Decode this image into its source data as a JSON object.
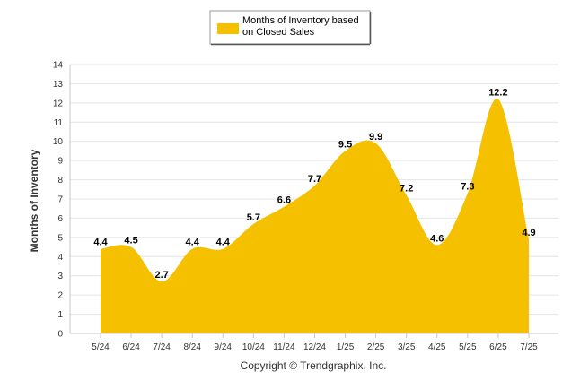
{
  "chart_data": {
    "type": "area",
    "categories": [
      "5/24",
      "6/24",
      "7/24",
      "8/24",
      "9/24",
      "10/24",
      "11/24",
      "12/24",
      "1/25",
      "2/25",
      "3/25",
      "4/25",
      "5/25",
      "6/25",
      "7/25"
    ],
    "series": [
      {
        "name": "Months of Inventory based on Closed Sales",
        "values": [
          4.4,
          4.5,
          2.7,
          4.4,
          4.4,
          5.7,
          6.6,
          7.7,
          9.5,
          9.9,
          7.2,
          4.6,
          7.3,
          12.2,
          4.9
        ],
        "labels": [
          "4.4",
          "4.5",
          "2.7",
          "4.4",
          "4.4",
          "5.7",
          "6.6",
          "7.7",
          "9.5",
          "9.9",
          "7.2",
          "4.6",
          "7.3",
          "12.2",
          "4.9"
        ],
        "color": "#F5C000"
      }
    ],
    "legend_lines": [
      "Months of Inventory based",
      "on Closed Sales"
    ],
    "legend_position": "top-center",
    "ylabel": "Months of Inventory",
    "ylim": [
      0,
      14
    ],
    "yticks": [
      "0",
      "1",
      "2",
      "3",
      "4",
      "5",
      "6",
      "7",
      "8",
      "9",
      "10",
      "11",
      "12",
      "13",
      "14"
    ],
    "grid": true,
    "footer": "Copyright © Trendgraphix, Inc."
  }
}
